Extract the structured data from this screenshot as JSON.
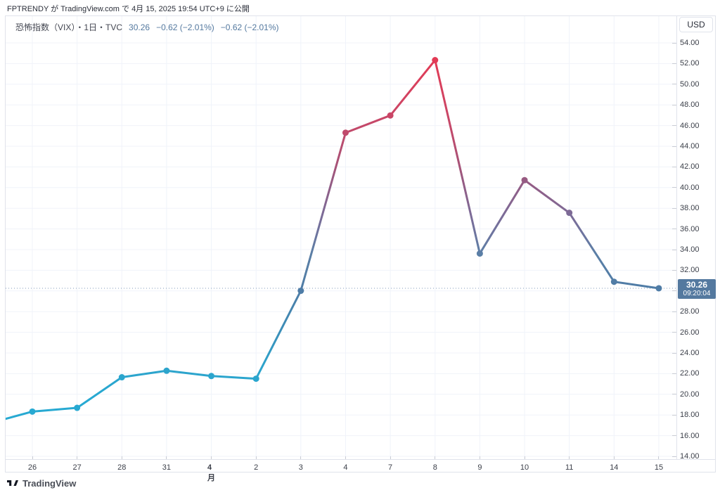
{
  "attribution": {
    "text": "FPTRENDY が TradingView.com で 4月 15, 2025 19:54 UTC+9 に公開"
  },
  "legend": {
    "title": "恐怖指数（VIX）・1日・TVC",
    "price": "30.26",
    "change": "−0.62 (−2.01%)",
    "change_extended": "−0.62 (−2.01%)"
  },
  "toolbar": {
    "currency_label": "USD"
  },
  "price_label": {
    "price": "30.26",
    "countdown": "09:20:04"
  },
  "footer": {
    "brand": "TradingView"
  },
  "colors": {
    "border": "#e0e3eb",
    "grid": "#f0f3fa",
    "text_dark": "#2a2e39",
    "text_axis": "#3c404a",
    "legend_value": "#54799f",
    "price_label_bg": "#54799f",
    "price_line": "#7f9ab8",
    "accent_teal": "#26aad3",
    "accent_red": "#e23a55",
    "accent_steel": "#4e7ca6"
  },
  "chart_data": {
    "type": "line",
    "title": "恐怖指数（VIX）",
    "exchange": "TVC",
    "interval": "1日",
    "currency": "USD",
    "x_labels": [
      "26",
      "27",
      "28",
      "31",
      "4月",
      "2",
      "3",
      "4",
      "7",
      "8",
      "9",
      "10",
      "11",
      "14",
      "15"
    ],
    "bold_x_label": "4月",
    "values": [
      18.33,
      18.69,
      21.65,
      22.28,
      21.77,
      21.51,
      30.02,
      45.31,
      46.98,
      52.33,
      33.62,
      40.72,
      37.56,
      30.89,
      30.26
    ],
    "leading_value_offscreen": 17.15,
    "current_price": 30.26,
    "ylim": [
      14,
      54
    ],
    "y_step": 2,
    "y_tick_labels": [
      "54.00",
      "52.00",
      "50.00",
      "48.00",
      "46.00",
      "44.00",
      "42.00",
      "40.00",
      "38.00",
      "36.00",
      "34.00",
      "32.00",
      "30.00",
      "28.00",
      "26.00",
      "24.00",
      "22.00",
      "20.00",
      "18.00",
      "16.00",
      "14.00"
    ],
    "grid": true,
    "marker": "circle",
    "line_gradient_stops": [
      {
        "offset": "0%",
        "color": "#ee3350"
      },
      {
        "offset": "4%",
        "color": "#e23a55"
      },
      {
        "offset": "15%",
        "color": "#cf4463"
      },
      {
        "offset": "22%",
        "color": "#c04a6c"
      },
      {
        "offset": "30%",
        "color": "#a65378"
      },
      {
        "offset": "33%",
        "color": "#975a82"
      },
      {
        "offset": "41%",
        "color": "#7e6a96"
      },
      {
        "offset": "47%",
        "color": "#6b76a0"
      },
      {
        "offset": "51%",
        "color": "#5b7fa6"
      },
      {
        "offset": "60%",
        "color": "#4e7ca6"
      },
      {
        "offset": "70%",
        "color": "#3b8fb9"
      },
      {
        "offset": "78%",
        "color": "#2da3cb"
      },
      {
        "offset": "86%",
        "color": "#27a9d2"
      },
      {
        "offset": "100%",
        "color": "#26aad3"
      }
    ]
  }
}
